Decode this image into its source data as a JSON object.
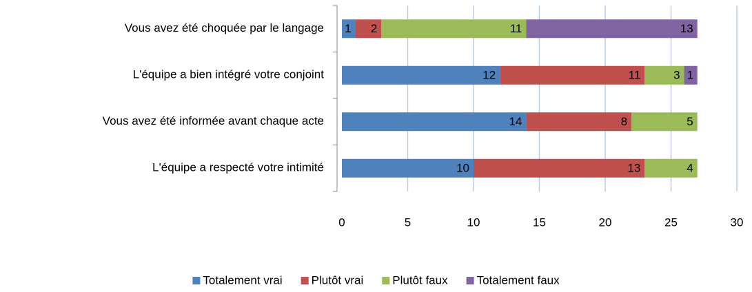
{
  "chart_data": {
    "type": "hbar-stacked",
    "categories": [
      "Vous avez été choquée par le langage",
      "L'équipe a bien intégré votre conjoint",
      "Vous avez été informée avant chaque acte",
      "L'équipe a respecté votre intimité"
    ],
    "series": [
      {
        "name": "Totalement vrai",
        "color": "#4f81bd",
        "values": [
          1,
          12,
          14,
          10
        ]
      },
      {
        "name": "Plutôt vrai",
        "color": "#c0504d",
        "values": [
          2,
          11,
          8,
          13
        ]
      },
      {
        "name": "Plutôt faux",
        "color": "#9bbb59",
        "values": [
          11,
          3,
          5,
          4
        ]
      },
      {
        "name": "Totalement faux",
        "color": "#8064a2",
        "values": [
          13,
          1,
          null,
          null
        ]
      }
    ],
    "xlim": [
      0,
      30
    ],
    "xticks": [
      0,
      5,
      10,
      15,
      20,
      25,
      30
    ],
    "grid": true,
    "legend": "bottom"
  }
}
